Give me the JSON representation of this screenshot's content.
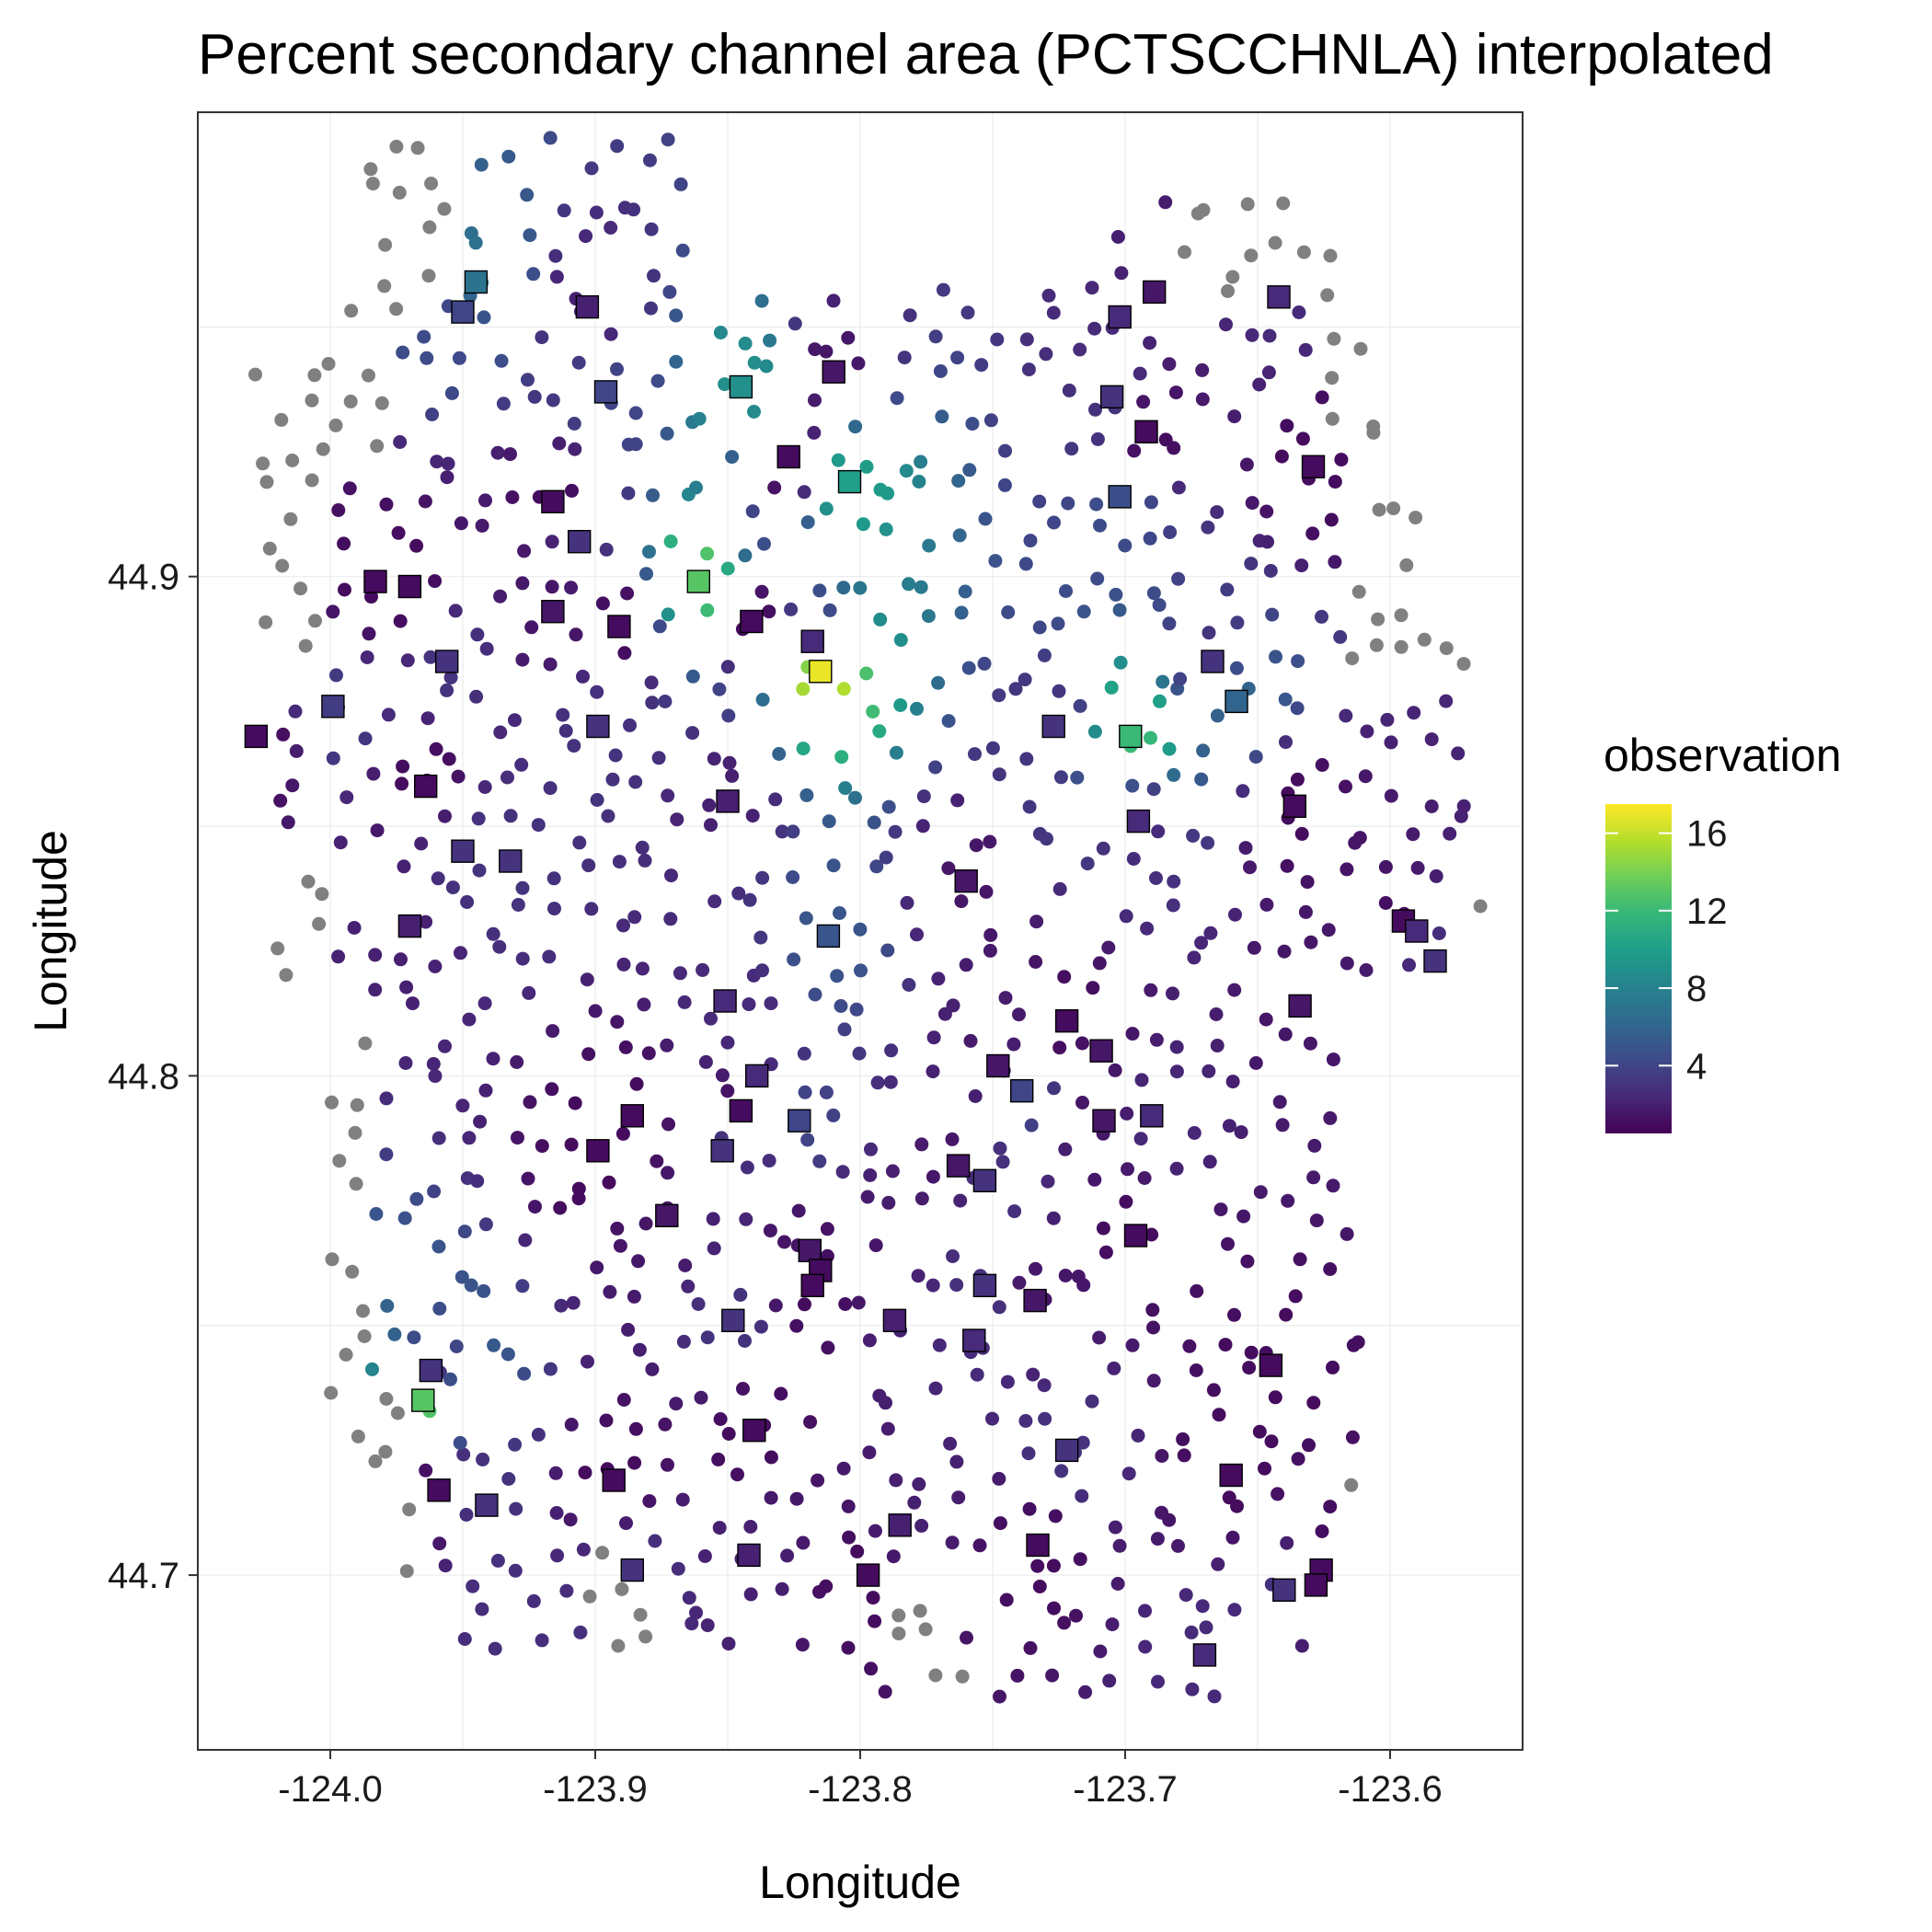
{
  "chart_data": {
    "type": "scatter",
    "title": "Percent secondary channel area (PCTSCCHNLA) interpolated",
    "xlabel": "Longitude",
    "ylabel": "Longitude",
    "xlim": [
      -124.05,
      -123.55
    ],
    "ylim": [
      44.665,
      44.993
    ],
    "x_ticks": [
      -124.0,
      -123.9,
      -123.8,
      -123.7,
      -123.6
    ],
    "y_ticks": [
      44.7,
      44.8,
      44.9
    ],
    "x_tick_labels": [
      "-124.0",
      "-123.9",
      "-123.8",
      "-123.7",
      "-123.6"
    ],
    "y_tick_labels": [
      "44.7",
      "44.8",
      "44.9"
    ],
    "grid": true,
    "legend": {
      "title": "observation",
      "position": "right",
      "colorscale": "viridis",
      "range": [
        0.5,
        17.5
      ],
      "ticks": [
        4,
        8,
        12,
        16
      ],
      "tick_labels": [
        "4",
        "8",
        "12",
        "16"
      ]
    },
    "colors": {
      "outside_points": "#808080",
      "viridis": [
        "#440154",
        "#482878",
        "#3e4a89",
        "#31688e",
        "#26828e",
        "#1f9e89",
        "#35b779",
        "#6ece58",
        "#b5de2b",
        "#fde725"
      ]
    },
    "series": [
      {
        "name": "observation",
        "marker": "square",
        "points": [
          [
            -123.945,
            44.959,
            7
          ],
          [
            -123.95,
            44.953,
            4
          ],
          [
            -123.903,
            44.954,
            2
          ],
          [
            -123.81,
            44.941,
            1.5
          ],
          [
            -123.896,
            44.937,
            4
          ],
          [
            -123.845,
            44.938,
            9
          ],
          [
            -123.689,
            44.957,
            1.5
          ],
          [
            -123.702,
            44.952,
            2.5
          ],
          [
            -123.642,
            44.956,
            2.5
          ],
          [
            -123.705,
            44.936,
            3
          ],
          [
            -123.692,
            44.929,
            1
          ],
          [
            -123.629,
            44.922,
            1
          ],
          [
            -123.827,
            44.924,
            1
          ],
          [
            -123.804,
            44.919,
            10
          ],
          [
            -123.916,
            44.915,
            1
          ],
          [
            -123.906,
            44.907,
            3
          ],
          [
            -123.702,
            44.916,
            4.5
          ],
          [
            -123.983,
            44.899,
            1
          ],
          [
            -123.97,
            44.898,
            1
          ],
          [
            -123.861,
            44.899,
            13
          ],
          [
            -123.916,
            44.893,
            1.5
          ],
          [
            -123.891,
            44.89,
            1
          ],
          [
            -123.841,
            44.891,
            1
          ],
          [
            -123.818,
            44.887,
            2.5
          ],
          [
            -123.956,
            44.883,
            3
          ],
          [
            -123.815,
            44.881,
            17
          ],
          [
            -123.667,
            44.883,
            3
          ],
          [
            -123.999,
            44.874,
            3.5
          ],
          [
            -123.658,
            44.875,
            6
          ],
          [
            -123.899,
            44.87,
            3
          ],
          [
            -123.727,
            44.87,
            3
          ],
          [
            -123.698,
            44.868,
            12
          ],
          [
            -124.028,
            44.868,
            1
          ],
          [
            -123.964,
            44.858,
            1
          ],
          [
            -123.85,
            44.855,
            2
          ],
          [
            -123.695,
            44.851,
            2.5
          ],
          [
            -123.636,
            44.854,
            1
          ],
          [
            -123.95,
            44.845,
            3
          ],
          [
            -123.932,
            44.843,
            3
          ],
          [
            -123.76,
            44.839,
            1.5
          ],
          [
            -123.97,
            44.83,
            2
          ],
          [
            -123.812,
            44.828,
            5
          ],
          [
            -123.595,
            44.831,
            1
          ],
          [
            -123.59,
            44.829,
            2.5
          ],
          [
            -123.583,
            44.823,
            3
          ],
          [
            -123.851,
            44.815,
            2.5
          ],
          [
            -123.634,
            44.814,
            1.5
          ],
          [
            -123.722,
            44.811,
            1
          ],
          [
            -123.839,
            44.8,
            2.5
          ],
          [
            -123.709,
            44.805,
            1.5
          ],
          [
            -123.748,
            44.802,
            1.5
          ],
          [
            -123.739,
            44.797,
            4
          ],
          [
            -123.845,
            44.793,
            1
          ],
          [
            -123.886,
            44.792,
            1
          ],
          [
            -123.708,
            44.791,
            1.5
          ],
          [
            -123.69,
            44.792,
            2.5
          ],
          [
            -123.823,
            44.791,
            4
          ],
          [
            -123.899,
            44.785,
            1
          ],
          [
            -123.852,
            44.785,
            3
          ],
          [
            -123.763,
            44.782,
            1.5
          ],
          [
            -123.753,
            44.779,
            3
          ],
          [
            -123.873,
            44.772,
            1.5
          ],
          [
            -123.696,
            44.768,
            1
          ],
          [
            -123.819,
            44.765,
            1.5
          ],
          [
            -123.815,
            44.761,
            1
          ],
          [
            -123.818,
            44.758,
            1
          ],
          [
            -123.753,
            44.758,
            3
          ],
          [
            -123.734,
            44.755,
            1.5
          ],
          [
            -123.848,
            44.751,
            3
          ],
          [
            -123.787,
            44.751,
            2
          ],
          [
            -123.757,
            44.747,
            2.5
          ],
          [
            -123.962,
            44.741,
            3
          ],
          [
            -123.645,
            44.742,
            1
          ],
          [
            -123.965,
            44.735,
            13
          ],
          [
            -123.84,
            44.729,
            1
          ],
          [
            -123.722,
            44.725,
            3
          ],
          [
            -123.893,
            44.719,
            1
          ],
          [
            -123.66,
            44.72,
            1
          ],
          [
            -123.959,
            44.717,
            1
          ],
          [
            -123.941,
            44.714,
            3
          ],
          [
            -123.785,
            44.71,
            2
          ],
          [
            -123.733,
            44.706,
            1
          ],
          [
            -123.842,
            44.704,
            2
          ],
          [
            -123.886,
            44.701,
            3
          ],
          [
            -123.797,
            44.7,
            1
          ],
          [
            -123.626,
            44.701,
            1
          ],
          [
            -123.628,
            44.698,
            1
          ],
          [
            -123.64,
            44.697,
            3
          ],
          [
            -123.67,
            44.684,
            2.5
          ]
        ]
      }
    ]
  }
}
